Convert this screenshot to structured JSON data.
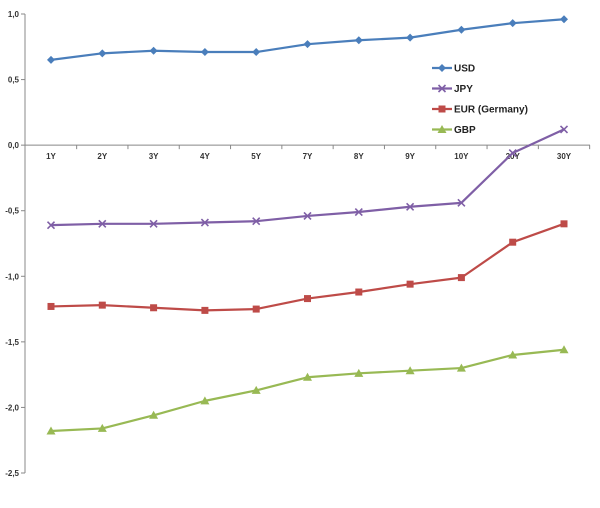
{
  "chart_data": {
    "type": "line",
    "title": "",
    "xlabel": "",
    "ylabel": "",
    "categories": [
      "1Y",
      "2Y",
      "3Y",
      "4Y",
      "5Y",
      "7Y",
      "8Y",
      "9Y",
      "10Y",
      "20Y",
      "30Y"
    ],
    "ylim": [
      -2.5,
      1.0
    ],
    "y_ticks": [
      "1,0",
      "0,5",
      "0,0",
      "-0,5",
      "-1,0",
      "-1,5",
      "-2,0",
      "-2,5"
    ],
    "grid": false,
    "legend_position": "right",
    "series": [
      {
        "name": "USD",
        "color": "#4a7ebb",
        "marker": "diamond",
        "values": [
          0.65,
          0.7,
          0.72,
          0.71,
          0.71,
          0.77,
          0.8,
          0.82,
          0.88,
          0.93,
          0.96
        ]
      },
      {
        "name": "JPY",
        "color": "#7f5fa6",
        "marker": "cross",
        "values": [
          -0.61,
          -0.6,
          -0.6,
          -0.59,
          -0.58,
          -0.54,
          -0.51,
          -0.47,
          -0.44,
          -0.06,
          0.12
        ]
      },
      {
        "name": "EUR (Germany)",
        "color": "#be4b48",
        "marker": "square",
        "values": [
          -1.23,
          -1.22,
          -1.24,
          -1.26,
          -1.25,
          -1.17,
          -1.12,
          -1.06,
          -1.01,
          -0.74,
          -0.6
        ]
      },
      {
        "name": "GBP",
        "color": "#98b954",
        "marker": "triangle",
        "values": [
          -2.18,
          -2.16,
          -2.06,
          -1.95,
          -1.87,
          -1.77,
          -1.74,
          -1.72,
          -1.7,
          -1.6,
          -1.56
        ]
      }
    ]
  }
}
